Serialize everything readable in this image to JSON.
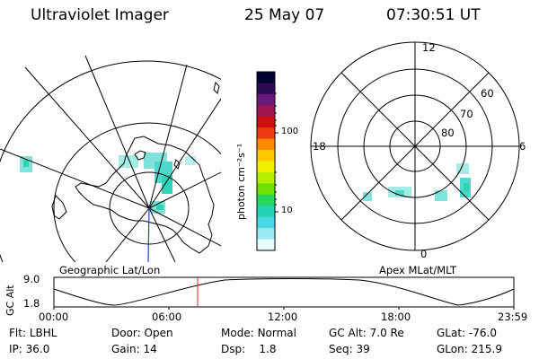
{
  "header": {
    "instrument": "Ultraviolet Imager",
    "date": "25 May 07",
    "time": "07:30:51 UT"
  },
  "left_map": {
    "caption": "Geographic Lat/Lon"
  },
  "right_map": {
    "caption": "Apex MLat/MLT",
    "mlt_labels": {
      "top": "12",
      "left": "18",
      "right": "6",
      "bottom": "0"
    },
    "mlat_labels": [
      "60",
      "70",
      "80"
    ]
  },
  "colorbar": {
    "unit_label": "photon cm⁻²s⁻¹",
    "ticks": [
      "100",
      "10"
    ],
    "colors": [
      "#000033",
      "#2b0a52",
      "#6a1a78",
      "#a0144f",
      "#cc1010",
      "#ee3a10",
      "#ff8a00",
      "#ffc800",
      "#f2f000",
      "#b8ef00",
      "#6fe000",
      "#27d85f",
      "#25d2b8",
      "#4ad8e8",
      "#9eeaf2",
      "#e8fafc"
    ]
  },
  "altitude_plot": {
    "y_label": "GC Alt",
    "y_ticks": [
      "9.0",
      "1.8"
    ],
    "x_ticks": [
      "00:00",
      "06:00",
      "12:00",
      "18:00",
      "23:59"
    ],
    "marker_color": "#e02020"
  },
  "footer": {
    "row1": [
      {
        "label": "Flt:",
        "value": "LBHL"
      },
      {
        "label": "Door:",
        "value": "Open"
      },
      {
        "label": "Mode:",
        "value": "Normal"
      },
      {
        "label": "GC Alt:",
        "value": "7.0 Re"
      },
      {
        "label": "GLat:",
        "value": "-76.0"
      }
    ],
    "row2": [
      {
        "label": "IP:",
        "value": "36.0"
      },
      {
        "label": "Gain:",
        "value": "14"
      },
      {
        "label": "Dsp:",
        "value": "1.8"
      },
      {
        "label": "Seq:",
        "value": "39"
      },
      {
        "label": "GLon:",
        "value": "215.9"
      }
    ]
  }
}
